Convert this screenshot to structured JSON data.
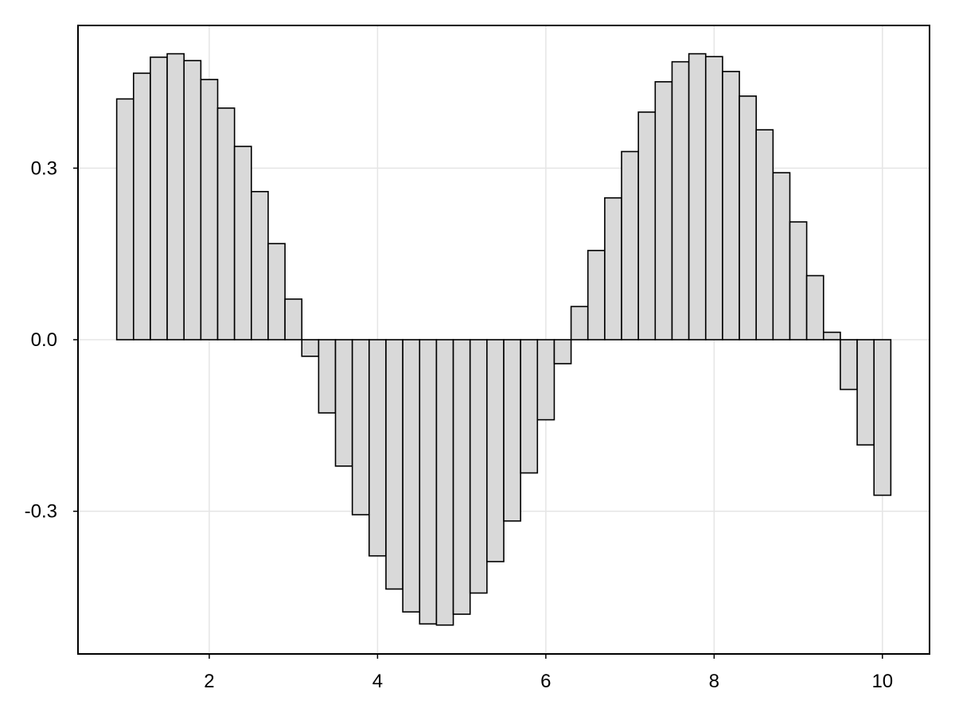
{
  "chart_data": {
    "type": "bar",
    "title": "",
    "xlabel": "",
    "ylabel": "",
    "xlim": [
      0.44,
      10.56
    ],
    "ylim": [
      -0.5495,
      0.5495
    ],
    "grid": true,
    "x_ticks": [
      {
        "value": 2,
        "label": "2"
      },
      {
        "value": 4,
        "label": "4"
      },
      {
        "value": 6,
        "label": "6"
      },
      {
        "value": 8,
        "label": "8"
      },
      {
        "value": 10,
        "label": "10"
      }
    ],
    "y_ticks": [
      {
        "value": -0.3,
        "label": "-0.3"
      },
      {
        "value": 0.0,
        "label": "0.0"
      },
      {
        "value": 0.3,
        "label": "0.3"
      }
    ],
    "bar_width": 0.2,
    "x": [
      1.0,
      1.2,
      1.4,
      1.6,
      1.8,
      2.0,
      2.2,
      2.4,
      2.6,
      2.8,
      3.0,
      3.2,
      3.4,
      3.6,
      3.8,
      4.0,
      4.2,
      4.4,
      4.6,
      4.8,
      5.0,
      5.2,
      5.4,
      5.6,
      5.8,
      6.0,
      6.2,
      6.4,
      6.6,
      6.8,
      7.0,
      7.2,
      7.4,
      7.6,
      7.8,
      8.0,
      8.2,
      8.4,
      8.6,
      8.8,
      9.0,
      9.2,
      9.4,
      9.6,
      9.8,
      10.0
    ],
    "values": [
      0.421,
      0.466,
      0.494,
      0.5,
      0.488,
      0.455,
      0.405,
      0.338,
      0.259,
      0.168,
      0.071,
      -0.029,
      -0.128,
      -0.221,
      -0.306,
      -0.378,
      -0.436,
      -0.476,
      -0.497,
      -0.499,
      -0.48,
      -0.443,
      -0.388,
      -0.317,
      -0.233,
      -0.14,
      -0.042,
      0.058,
      0.156,
      0.248,
      0.329,
      0.398,
      0.451,
      0.486,
      0.5,
      0.495,
      0.469,
      0.426,
      0.367,
      0.292,
      0.206,
      0.112,
      0.013,
      -0.087,
      -0.184,
      -0.272
    ],
    "bar_fill": "#d9d9d9",
    "bar_stroke": "#000000",
    "grid_color": "#e5e5e5",
    "frame_color": "#000000"
  }
}
